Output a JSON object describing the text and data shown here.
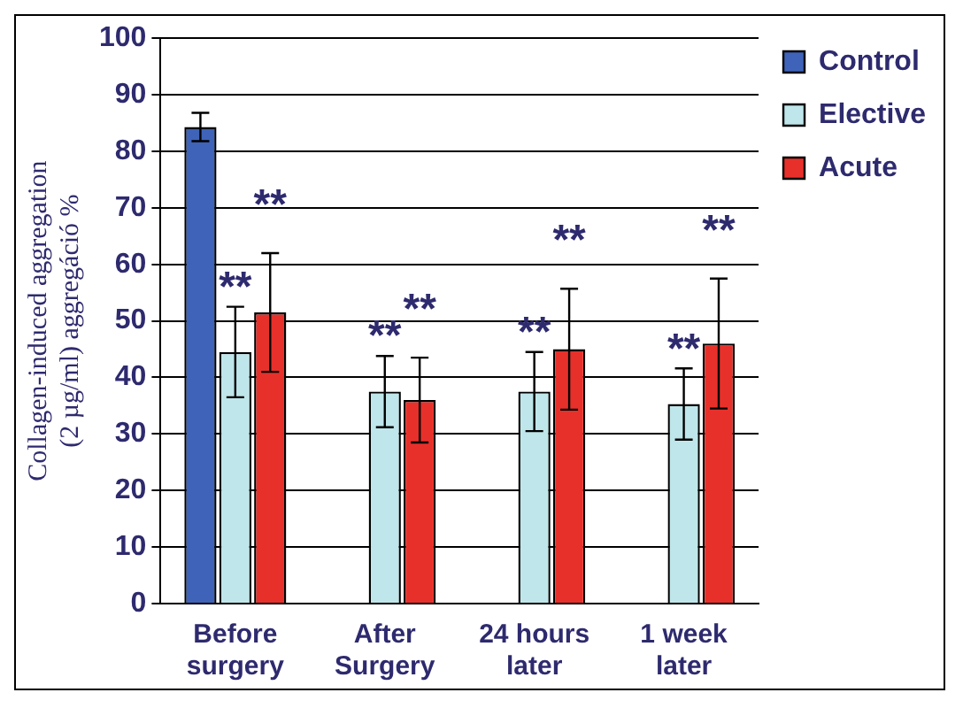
{
  "chart_data": {
    "type": "bar",
    "ylabel": "Collagen-induced aggregation\n(2 µg/ml) aggregáció %",
    "categories": [
      "Before\nsurgery",
      "After\nSurgery",
      "24 hours\nlater",
      "1 week\nlater"
    ],
    "series": [
      {
        "name": "Control",
        "color": "#3f63b8",
        "values": [
          84.3,
          null,
          null,
          null
        ],
        "errors": [
          2.5,
          null,
          null,
          null
        ]
      },
      {
        "name": "Elective",
        "color": "#bfe6ea",
        "values": [
          44.5,
          37.5,
          37.5,
          35.3
        ],
        "errors": [
          8,
          6.3,
          7,
          6.3
        ]
      },
      {
        "name": "Acute",
        "color": "#e8302a",
        "values": [
          51.5,
          36,
          45,
          46
        ],
        "errors": [
          10.5,
          7.5,
          10.7,
          11.5
        ]
      }
    ],
    "ylim": [
      0,
      100
    ],
    "yticks": [
      0,
      10,
      20,
      30,
      40,
      50,
      60,
      70,
      80,
      90,
      100
    ],
    "grid": "y",
    "legend": "top right",
    "annotations": [
      "**",
      "**",
      "**",
      "**",
      "**",
      "**",
      "**",
      "**"
    ]
  }
}
